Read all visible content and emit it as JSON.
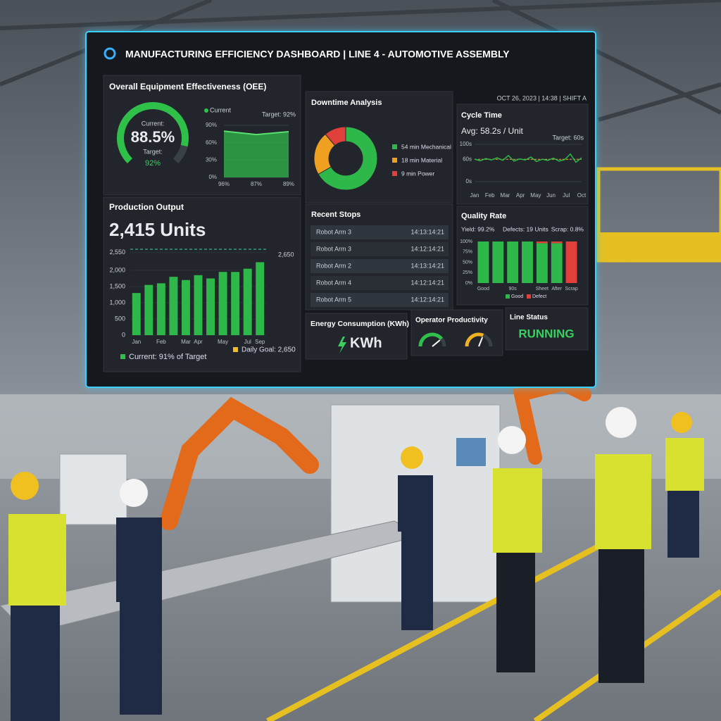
{
  "header": {
    "title": "MANUFACTURING EFFICIENCY DASHBOARD | LINE 4 - AUTOMOTIVE ASSEMBLY",
    "datetime": "OCT 26, 2023 | 14:38 | SHIFT A"
  },
  "oee": {
    "title": "Overall Equipment Effectiveness (OEE)",
    "current_label": "Current:",
    "current": {
      "value": 88.5,
      "label": "88.5%"
    },
    "target_label": "Target:",
    "target": "92%",
    "legend": "Current",
    "target_text": "Target: 92%",
    "trend": {
      "ylim": [
        0,
        90
      ],
      "yticks": [
        {
          "value": 0,
          "label": "0%"
        },
        {
          "value": 30,
          "label": "30%"
        },
        {
          "value": 60,
          "label": "60%"
        },
        {
          "value": 90,
          "label": "90%"
        }
      ],
      "categories": [
        "96%",
        "87%",
        "89%"
      ],
      "values": [
        80,
        74,
        79
      ],
      "color": "#2fb84a"
    }
  },
  "downtime": {
    "title": "Downtime Analysis",
    "segments": [
      {
        "name": "54 min Mechanical",
        "value": 54,
        "color": "#2fb84a"
      },
      {
        "name": "18 min Material",
        "value": 18,
        "color": "#f0a020"
      },
      {
        "name": "9 min Power",
        "value": 9,
        "color": "#e0403a"
      }
    ]
  },
  "cycle_time": {
    "title": "Cycle Time",
    "average": "Avg: 58.2s / Unit",
    "target": "Target: 60s",
    "target_value": 60,
    "ylim": [
      0,
      100
    ],
    "yticks": [
      {
        "value": 0,
        "label": "0s"
      },
      {
        "value": 60,
        "label": "60s"
      },
      {
        "value": 100,
        "label": "100s"
      }
    ],
    "axis_labels": [
      "Jan",
      "Feb",
      "Mar",
      "Apr",
      "May",
      "Jun",
      "Jul",
      "Oct"
    ],
    "values": [
      60,
      56,
      62,
      58,
      64,
      57,
      70,
      55,
      61,
      58,
      66,
      54,
      60,
      57,
      63,
      55,
      59,
      74,
      52,
      64
    ],
    "color": "#2fb84a"
  },
  "production": {
    "title": "Production Output",
    "total": "2,415 Units",
    "ylim": [
      0,
      2650
    ],
    "yticks": [
      0,
      500,
      {
        "value": 1000,
        "label": "1,000"
      },
      {
        "value": 1500,
        "label": "1,500"
      },
      {
        "value": 2000,
        "label": "2,000"
      },
      {
        "value": 2550,
        "label": "2,550"
      }
    ],
    "goal": {
      "value": 2650,
      "label": "2,650"
    },
    "categories": [
      "Jan",
      null,
      "Feb",
      null,
      "Mar",
      "Apr",
      null,
      "May",
      null,
      "Jul",
      "Sep"
    ],
    "values": [
      1300,
      1550,
      1600,
      1800,
      1700,
      1850,
      1750,
      1950,
      1950,
      2050,
      2250
    ],
    "color": "#2fb84a",
    "legend_current": "Current: 91% of Target",
    "legend_goal": "Daily Goal: 2,650"
  },
  "stops": {
    "title": "Recent Stops",
    "rows": [
      [
        "Robot Arm 3",
        "14:13:14:21"
      ],
      [
        "Robot Arm 3",
        "14:12:14:21"
      ],
      [
        "Robot Arm 2",
        "14:13:14:21"
      ],
      [
        "Robot Arm 4",
        "14:12:14:21"
      ],
      [
        "Robot Arm 5",
        "14:12:14:21"
      ]
    ]
  },
  "quality": {
    "title": "Quality Rate",
    "yield": "Yield: 99.2%",
    "defects": "Defects: 19 Units",
    "scrap": "Scrap: 0.8%",
    "ylim": [
      0,
      100
    ],
    "yticks": [
      {
        "value": 0,
        "label": "0%"
      },
      {
        "value": 25,
        "label": "25%"
      },
      {
        "value": 50,
        "label": "50%"
      },
      {
        "value": 75,
        "label": "75%"
      },
      {
        "value": 100,
        "label": "100%"
      }
    ],
    "categories": [
      "Good",
      null,
      "90s",
      null,
      "Sheet",
      "After",
      "Scrap"
    ],
    "series": [
      {
        "name": "Good",
        "color": "#2fb84a",
        "values": [
          100,
          100,
          100,
          100,
          96,
          96,
          0
        ]
      },
      {
        "name": "Defect",
        "color": "#e0403a",
        "values": [
          0,
          0,
          0,
          0,
          4,
          4,
          100
        ]
      }
    ]
  },
  "energy": {
    "title": "Energy Consumption (KWh)",
    "value": "KWh"
  },
  "operator": {
    "title": "Operator Productivity",
    "gauges": [
      78,
      62
    ]
  },
  "status": {
    "title": "Line Status",
    "value": "RUNNING"
  }
}
